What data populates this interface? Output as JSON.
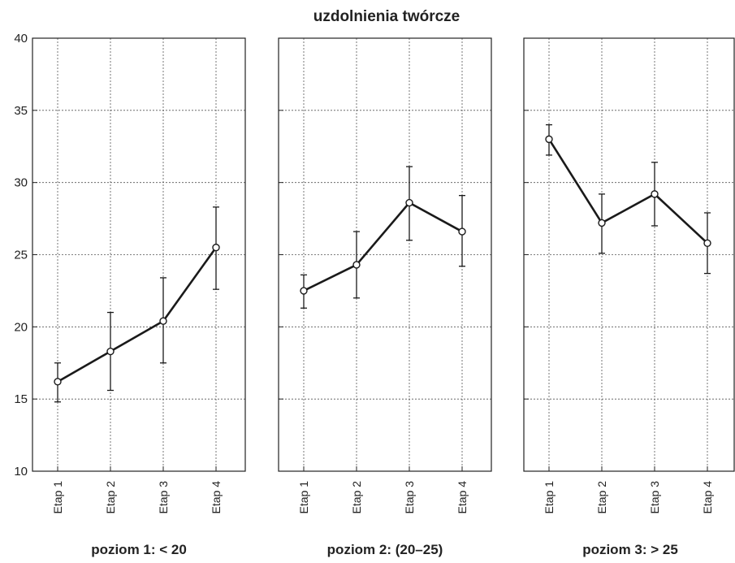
{
  "chart_data": {
    "type": "line",
    "title": "uzdolnienia twórcze",
    "xlabel": "",
    "ylabel": "",
    "ylim": [
      10,
      40
    ],
    "yticks": [
      10,
      15,
      20,
      25,
      30,
      35,
      40
    ],
    "categories": [
      "Etap 1",
      "Etap 2",
      "Etap 3",
      "Etap 4"
    ],
    "grid": true,
    "error_bars": true,
    "panels": [
      {
        "label": "poziom 1: < 20",
        "values": [
          16.2,
          18.3,
          20.4,
          25.5
        ],
        "error_low": [
          14.8,
          15.6,
          17.5,
          22.6
        ],
        "error_high": [
          17.5,
          21.0,
          23.4,
          28.3
        ]
      },
      {
        "label": "poziom 2: (20–25)",
        "values": [
          22.5,
          24.3,
          28.6,
          26.6
        ],
        "error_low": [
          21.3,
          22.0,
          26.0,
          24.2
        ],
        "error_high": [
          23.6,
          26.6,
          31.1,
          29.1
        ]
      },
      {
        "label": "poziom 3: > 25",
        "values": [
          33.0,
          27.2,
          29.2,
          25.8
        ],
        "error_low": [
          31.9,
          25.1,
          27.0,
          23.7
        ],
        "error_high": [
          34.0,
          29.2,
          31.4,
          27.9
        ]
      }
    ],
    "colors": {
      "line": "#1a1a1a",
      "marker_fill": "#ffffff",
      "grid": "#555555",
      "frame": "#222222"
    }
  }
}
